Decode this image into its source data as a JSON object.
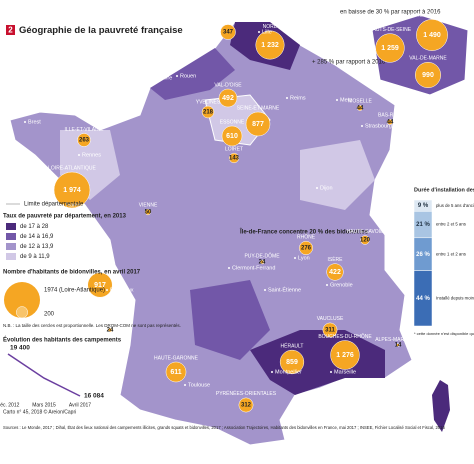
{
  "header": {
    "badge": "2",
    "title": "Géographie de la pauvreté française"
  },
  "camps": [
    {
      "department": "PAS-DE-CALAIS",
      "value": 347
    },
    {
      "department": "NORD",
      "value": 1232,
      "value_label": "1 232"
    },
    {
      "department": "VAL-D'OISE",
      "value": 492
    },
    {
      "department": "YVELINES",
      "value": 218
    },
    {
      "department": "SEINE-ET-MARNE",
      "value": 877
    },
    {
      "department": "ESSONNE",
      "value": 610
    },
    {
      "department": "LOIRET",
      "value": 143
    },
    {
      "department": "ILLE-ET-VILAINE",
      "value": 263
    },
    {
      "department": "LOIRE-ATLANTIQUE",
      "value": 1974,
      "value_label": "1 974"
    },
    {
      "department": "VIENNE",
      "value": 50
    },
    {
      "department": "GIRONDE",
      "value": 917
    },
    {
      "department": "LANDES",
      "value": 24
    },
    {
      "department": "HAUTE-GARONNE",
      "value": 611
    },
    {
      "department": "PYRÉNÉES-ORIENTALES",
      "value": 312
    },
    {
      "department": "HÉRAULT",
      "value": 859
    },
    {
      "department": "VAUCLUSE",
      "value": 311
    },
    {
      "department": "BOUCHES-DU-RHÔNE",
      "value": 1276,
      "value_label": "1 276"
    },
    {
      "department": "RHÔNE",
      "value": 276
    },
    {
      "department": "ISÈRE",
      "value": 422
    },
    {
      "department": "HAUTE-SAVOIE",
      "value": 120
    },
    {
      "department": "PUY-DE-DÔME",
      "value": 24
    },
    {
      "department": "MOSELLE",
      "value": 44
    },
    {
      "department": "BAS-RHIN",
      "value": 44
    },
    {
      "department": "ALPES-MARITIMES",
      "value": 14
    },
    {
      "department": "HAUTS-DE-SEINE",
      "value": 1259,
      "value_label": "1 259"
    },
    {
      "department": "SEINE-SAINT-DENIS",
      "value": 1490,
      "value_label": "1 490"
    },
    {
      "department": "VAL-DE-MARNE",
      "value": 990
    }
  ],
  "cities": [
    "Lille",
    "Le Havre",
    "Rouen",
    "Reims",
    "Metz",
    "Strasbourg",
    "Brest",
    "Rennes",
    "Nantes",
    "Bordeaux",
    "Toulouse",
    "Montpellier",
    "Marseille",
    "Nice",
    "Lyon",
    "Grenoble",
    "Dijon",
    "Clermont-Ferrand",
    "Saint-Étienne"
  ],
  "annotations": {
    "idf": "Île-de-France concentre 20 % des bidonvilles",
    "ssd": "en baisse de 30 % par rapport à 2016",
    "hds": "+ 285 % par rapport à 2016"
  },
  "legend": {
    "boundary": "Limite départementale",
    "poverty_title": "Taux de pauvreté par département, en 2013",
    "classes": [
      {
        "label": "de 17 à 28",
        "color": "#4b2a7b"
      },
      {
        "label": "de 14 à 16,9",
        "color": "#7257a8"
      },
      {
        "label": "de 12 à 13,9",
        "color": "#a394cb"
      },
      {
        "label": "de 9 à 11,9",
        "color": "#d1c8e6"
      }
    ],
    "camps_title": "Nombre d'habitants de bidonvilles, en avril 2017",
    "max_label": "1974 (Loire-Atlantique)",
    "max_value": 1974,
    "min_label": "200",
    "min_value": 200,
    "circle_color": "#f5a623",
    "note": "N.B. : La taille des cercles est proportionnelle. Les DROM-COM ne sont pas représentés."
  },
  "evolution": {
    "title": "Évolution des habitants des campements",
    "categories": [
      "Déc. 2012",
      "Mars 2015",
      "Avril 2017"
    ],
    "values": [
      19400,
      17500,
      16084
    ],
    "value_labels": [
      "19 400",
      null,
      "16 084"
    ],
    "color": "#6b3fa0"
  },
  "duration": {
    "title": "Durée d'installation des campements *",
    "segments": [
      {
        "label": "plus de 5 ans d'ancienneté",
        "value": 9,
        "value_label": "9 %",
        "color": "#dde8f3"
      },
      {
        "label": "entre 2 et 5 ans",
        "value": 21,
        "value_label": "21 %",
        "color": "#a9c5e3"
      },
      {
        "label": "entre 1 et 2 ans",
        "value": 26,
        "value_label": "26 %",
        "color": "#6f9bd0"
      },
      {
        "label": "Installé depuis moins de 1 an",
        "value": 44,
        "value_label": "44 %",
        "color": "#3b6db5"
      }
    ],
    "note": "* cette donnée n'est disponible que pour 55 % des recensés"
  },
  "footer": {
    "sources": "Sources : Le Monde, 2017 ; Dihal, État des lieux national des campements illicites, grands squats et bidonvilles, 2017 ; Association Trajectoires, Habitants des bidonvilles en France, mai 2017 ; INSEE, Fichier Localisé Social et Fiscal, 2016",
    "credit": "Carto n° 45, 2018 © Areion/Capri"
  }
}
